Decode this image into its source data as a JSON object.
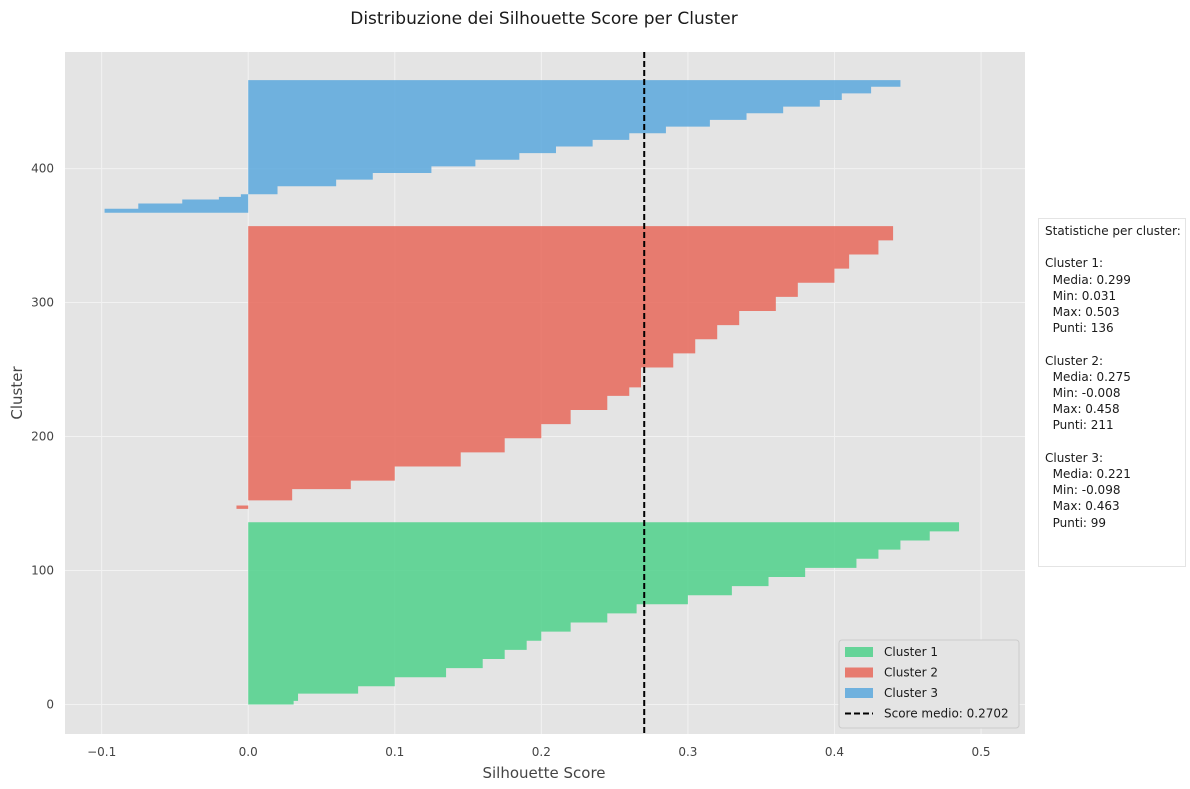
{
  "chart_data": {
    "type": "area",
    "title": "Distribuzione dei Silhouette Score per Cluster",
    "xlabel": "Silhouette Score",
    "ylabel": "Cluster",
    "xlim": [
      -0.125,
      0.53
    ],
    "ylim": [
      -22,
      487
    ],
    "x_ticks": [
      -0.1,
      0.0,
      0.1,
      0.2,
      0.3,
      0.4,
      0.5
    ],
    "x_tick_labels": [
      "−0.1",
      "0.0",
      "0.1",
      "0.2",
      "0.3",
      "0.4",
      "0.5"
    ],
    "y_ticks": [
      0,
      100,
      200,
      300,
      400
    ],
    "y_tick_labels": [
      "0",
      "100",
      "200",
      "300",
      "400"
    ],
    "grid": true,
    "legend_position": "lower-right",
    "series": [
      {
        "name": "Cluster 1",
        "color": "#4fd18b",
        "y_start": 0,
        "count": 136,
        "profile": [
          [
            0,
            0.031
          ],
          [
            0.02,
            0.034
          ],
          [
            0.06,
            0.075
          ],
          [
            0.1,
            0.1
          ],
          [
            0.15,
            0.135
          ],
          [
            0.2,
            0.16
          ],
          [
            0.25,
            0.175
          ],
          [
            0.3,
            0.19
          ],
          [
            0.35,
            0.2
          ],
          [
            0.4,
            0.22
          ],
          [
            0.45,
            0.245
          ],
          [
            0.5,
            0.265
          ],
          [
            0.55,
            0.3
          ],
          [
            0.6,
            0.33
          ],
          [
            0.65,
            0.355
          ],
          [
            0.7,
            0.38
          ],
          [
            0.75,
            0.415
          ],
          [
            0.8,
            0.43
          ],
          [
            0.85,
            0.445
          ],
          [
            0.9,
            0.465
          ],
          [
            0.95,
            0.485
          ],
          [
            1.0,
            0.503
          ]
        ]
      },
      {
        "name": "Cluster 2",
        "color": "#e8695a",
        "y_start": 146,
        "count": 211,
        "profile": [
          [
            0,
            -0.008
          ],
          [
            0.012,
            0.0
          ],
          [
            0.03,
            0.03
          ],
          [
            0.07,
            0.07
          ],
          [
            0.1,
            0.1
          ],
          [
            0.15,
            0.145
          ],
          [
            0.2,
            0.175
          ],
          [
            0.25,
            0.2
          ],
          [
            0.3,
            0.22
          ],
          [
            0.35,
            0.245
          ],
          [
            0.4,
            0.26
          ],
          [
            0.43,
            0.268
          ],
          [
            0.5,
            0.29
          ],
          [
            0.55,
            0.305
          ],
          [
            0.6,
            0.32
          ],
          [
            0.65,
            0.335
          ],
          [
            0.7,
            0.36
          ],
          [
            0.75,
            0.375
          ],
          [
            0.8,
            0.4
          ],
          [
            0.85,
            0.41
          ],
          [
            0.9,
            0.43
          ],
          [
            0.95,
            0.44
          ],
          [
            1.0,
            0.458
          ]
        ]
      },
      {
        "name": "Cluster 3",
        "color": "#5aa8dd",
        "y_start": 367,
        "count": 99,
        "profile": [
          [
            0,
            -0.098
          ],
          [
            0.03,
            -0.075
          ],
          [
            0.07,
            -0.045
          ],
          [
            0.1,
            -0.02
          ],
          [
            0.12,
            -0.005
          ],
          [
            0.14,
            0.02
          ],
          [
            0.2,
            0.06
          ],
          [
            0.25,
            0.085
          ],
          [
            0.3,
            0.125
          ],
          [
            0.35,
            0.155
          ],
          [
            0.4,
            0.185
          ],
          [
            0.45,
            0.21
          ],
          [
            0.5,
            0.235
          ],
          [
            0.55,
            0.26
          ],
          [
            0.6,
            0.285
          ],
          [
            0.65,
            0.315
          ],
          [
            0.7,
            0.34
          ],
          [
            0.75,
            0.365
          ],
          [
            0.8,
            0.39
          ],
          [
            0.85,
            0.405
          ],
          [
            0.9,
            0.425
          ],
          [
            0.95,
            0.445
          ],
          [
            1.0,
            0.463
          ]
        ]
      }
    ],
    "mean_line": {
      "label": "Score medio: 0.2702",
      "value": 0.2702
    }
  },
  "stats_panel": {
    "lines": [
      "Statistiche per cluster:",
      "",
      "Cluster 1:",
      "  Media: 0.299",
      "  Min: 0.031",
      "  Max: 0.503",
      "  Punti: 136",
      "",
      "Cluster 2:",
      "  Media: 0.275",
      "  Min: -0.008",
      "  Max: 0.458",
      "  Punti: 211",
      "",
      "Cluster 3:",
      "  Media: 0.221",
      "  Min: -0.098",
      "  Max: 0.463",
      "  Punti: 99"
    ]
  }
}
